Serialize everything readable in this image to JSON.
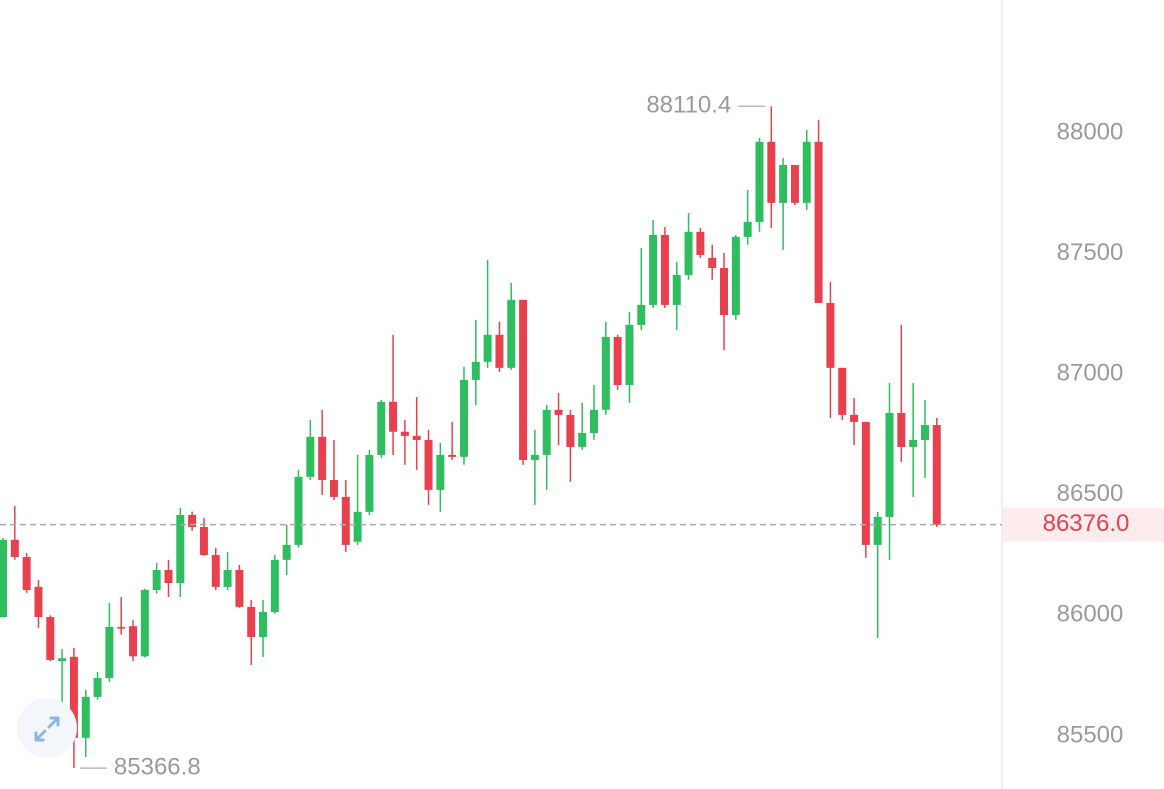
{
  "chart_data": {
    "type": "candlestick",
    "open": [
      85993,
      86313,
      86242,
      86118,
      85993,
      85810,
      85828,
      85492,
      85662,
      85740,
      85952,
      85955,
      85830,
      86105,
      86188,
      86134,
      86416,
      86366,
      86250,
      86118,
      86188,
      86035,
      85910,
      86014,
      86230,
      86292,
      86574,
      86740,
      86561,
      86491,
      86305,
      86429,
      86665,
      86885,
      86761,
      86744,
      86727,
      86520,
      86665,
      86657,
      86976,
      87051,
      87163,
      87026,
      87308,
      86644,
      86665,
      86852,
      86831,
      86698,
      86756,
      86852,
      87154,
      86955,
      87204,
      87287,
      87577,
      87287,
      87411,
      87590,
      87482,
      87440,
      87245,
      87569,
      87631,
      87963,
      87710,
      87867,
      87710,
      87963,
      87295,
      87026,
      86831,
      86802,
      86292,
      86408,
      86839,
      86698,
      86727,
      86789
    ],
    "high": [
      86320,
      86454,
      86259,
      86147,
      86000,
      85860,
      85865,
      85690,
      85765,
      86051,
      86076,
      85980,
      86110,
      86217,
      86230,
      86445,
      86430,
      86404,
      86280,
      86263,
      86209,
      86064,
      86064,
      86250,
      86375,
      86603,
      86810,
      86852,
      86727,
      86561,
      86665,
      86686,
      86893,
      87163,
      86810,
      86905,
      86769,
      86715,
      86802,
      87030,
      87225,
      87474,
      87217,
      87378,
      87308,
      86769,
      86872,
      86922,
      86852,
      86881,
      86955,
      87217,
      87163,
      87258,
      87523,
      87639,
      87610,
      87465,
      87668,
      87606,
      87536,
      87502,
      87577,
      87763,
      87979,
      88110.4,
      87896,
      87867,
      88012,
      88054,
      87382,
      87026,
      86901,
      86802,
      86429,
      86963,
      87204,
      86963,
      86893,
      86818
    ],
    "low": [
      85990,
      86230,
      86093,
      85948,
      85810,
      85490,
      85366.8,
      85413,
      85650,
      85724,
      85920,
      85810,
      85825,
      86090,
      86076,
      86076,
      86350,
      86246,
      86105,
      86105,
      86031,
      85794,
      85827,
      86006,
      86167,
      86280,
      86561,
      86499,
      86478,
      86263,
      86292,
      86416,
      86653,
      86665,
      86624,
      86603,
      86458,
      86429,
      86644,
      86624,
      86872,
      87026,
      87009,
      87018,
      86624,
      86458,
      86520,
      86706,
      86553,
      86686,
      86727,
      86831,
      86935,
      86881,
      87183,
      87274,
      87274,
      87183,
      87391,
      87482,
      87391,
      87100,
      87225,
      87536,
      87590,
      87606,
      87515,
      87701,
      87681,
      87295,
      86818,
      86810,
      86706,
      86238,
      85906,
      86230,
      86636,
      86491,
      86570,
      86366
    ],
    "close": [
      86313,
      86242,
      86105,
      85993,
      85815,
      85822,
      85492,
      85662,
      85740,
      85952,
      85945,
      85830,
      86105,
      86188,
      86134,
      86416,
      86366,
      86250,
      86118,
      86188,
      86035,
      85910,
      86014,
      86230,
      86292,
      86574,
      86740,
      86561,
      86491,
      86292,
      86429,
      86665,
      86885,
      86761,
      86744,
      86727,
      86520,
      86665,
      86657,
      86976,
      87051,
      87163,
      87026,
      87308,
      86644,
      86665,
      86852,
      86831,
      86698,
      86756,
      86852,
      87154,
      86955,
      87204,
      87287,
      87577,
      87287,
      87411,
      87590,
      87494,
      87440,
      87245,
      87569,
      87631,
      87963,
      87710,
      87867,
      87710,
      87963,
      87295,
      87026,
      86831,
      86802,
      86292,
      86408,
      86839,
      86698,
      86727,
      86789,
      86376
    ],
    "up_color": "#2ebd5f",
    "down_color": "#e8414d",
    "ylim": [
      85280,
      88551
    ],
    "yticks": [
      85500,
      86000,
      86500,
      87000,
      87500,
      88000
    ],
    "last_price": {
      "value": 86376,
      "label": "86376.0"
    }
  }
}
